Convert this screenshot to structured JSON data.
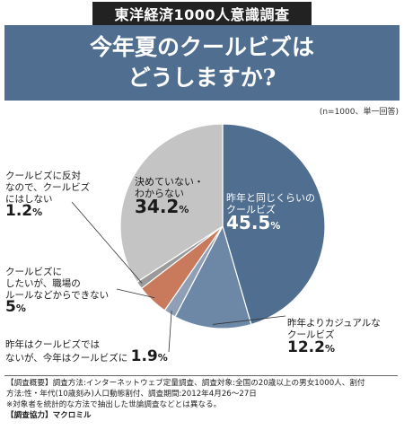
{
  "header": {
    "banner": "東洋経済1000人意識調査",
    "title_line1": "今年夏のクールビズは",
    "title_line2": "どうしますか?"
  },
  "note": "(n=1000、単一回答)",
  "colors": {
    "banner": "#222222",
    "title_bg": "#4f6e90",
    "slice_same": "#4f6e90",
    "slice_casual": "#6d87a6",
    "slice_stop": "#8e9fb6",
    "slice_want": "#c97a5c",
    "slice_none": "#9a9a9a",
    "slice_undecided": "#c4c4c4"
  },
  "chart_data": {
    "type": "pie",
    "slices": [
      {
        "key": "same",
        "label_lines": [
          "昨年と同じくらいの",
          "クールビズ"
        ],
        "value": 45.5,
        "color": "#4f6e90"
      },
      {
        "key": "casual",
        "label_lines": [
          "昨年よりカジュアルな",
          "クールビズ"
        ],
        "value": 12.2,
        "color": "#6d87a6"
      },
      {
        "key": "stop",
        "label_lines": [
          "昨年はクールビズでは",
          "ないが、今年はクールビズに"
        ],
        "value": 1.9,
        "color": "#8e9fb6"
      },
      {
        "key": "want",
        "label_lines": [
          "クールビズに",
          "したいが、職場の",
          "ルールなどからできない"
        ],
        "value": 5.0,
        "color": "#c97a5c"
      },
      {
        "key": "none",
        "label_lines": [
          "クールビズに反対",
          "なので、クールビズ",
          "にはしない"
        ],
        "value": 1.2,
        "color": "#9a9a9a"
      },
      {
        "key": "undecided",
        "label_lines": [
          "決めていない・",
          "わからない"
        ],
        "value": 34.2,
        "color": "#c4c4c4"
      }
    ],
    "unit": "%"
  },
  "footer": {
    "line1": "【調査概要】調査方法:インターネットウェブ定量調査、調査対象:全国の20歳以上の男女1000人、割付",
    "line2": "方法:性・年代(10歳刻み)人口動態割付、調査期間:2012年4月26〜27日",
    "line3": "※対象者を統計的な方法で抽出した世論調査などとは異なる。",
    "line4": "【調査協力】マクロミル"
  }
}
